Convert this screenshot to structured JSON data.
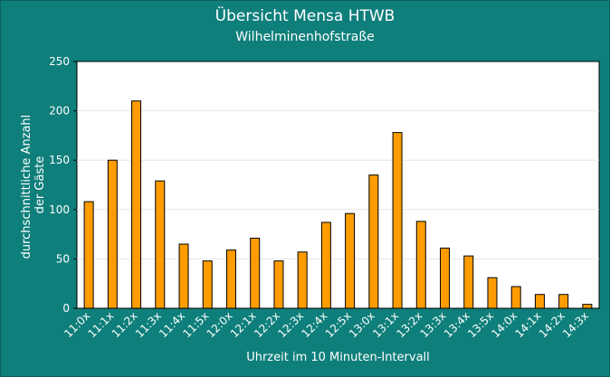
{
  "chart_data": {
    "type": "bar",
    "title": "Übersicht Mensa HTWB",
    "subtitle": "Wilhelminenhofstraße",
    "xlabel": "Uhrzeit im 10 Minuten-Intervall",
    "ylabel_lines": [
      "durchschnittliche Anzahl",
      "der Gäste"
    ],
    "ylim": [
      0,
      250
    ],
    "yticks": [
      0,
      50,
      100,
      150,
      200,
      250
    ],
    "categories": [
      "11:0x",
      "11:1x",
      "11:2x",
      "11:3x",
      "11:4x",
      "11:5x",
      "12:0x",
      "12:1x",
      "12:2x",
      "12:3x",
      "12:4x",
      "12:5x",
      "13:0x",
      "13:1x",
      "13:2x",
      "13:3x",
      "13:4x",
      "13:5x",
      "14:0x",
      "14:1x",
      "14:2x",
      "14:3x"
    ],
    "values": [
      108,
      150,
      210,
      129,
      65,
      48,
      59,
      71,
      48,
      57,
      87,
      96,
      135,
      178,
      88,
      61,
      53,
      31,
      22,
      14,
      14,
      4
    ],
    "bar_color": "#ff9c00",
    "plot_background": "#ffffff",
    "background": "#0f7f7b",
    "grid": true
  }
}
